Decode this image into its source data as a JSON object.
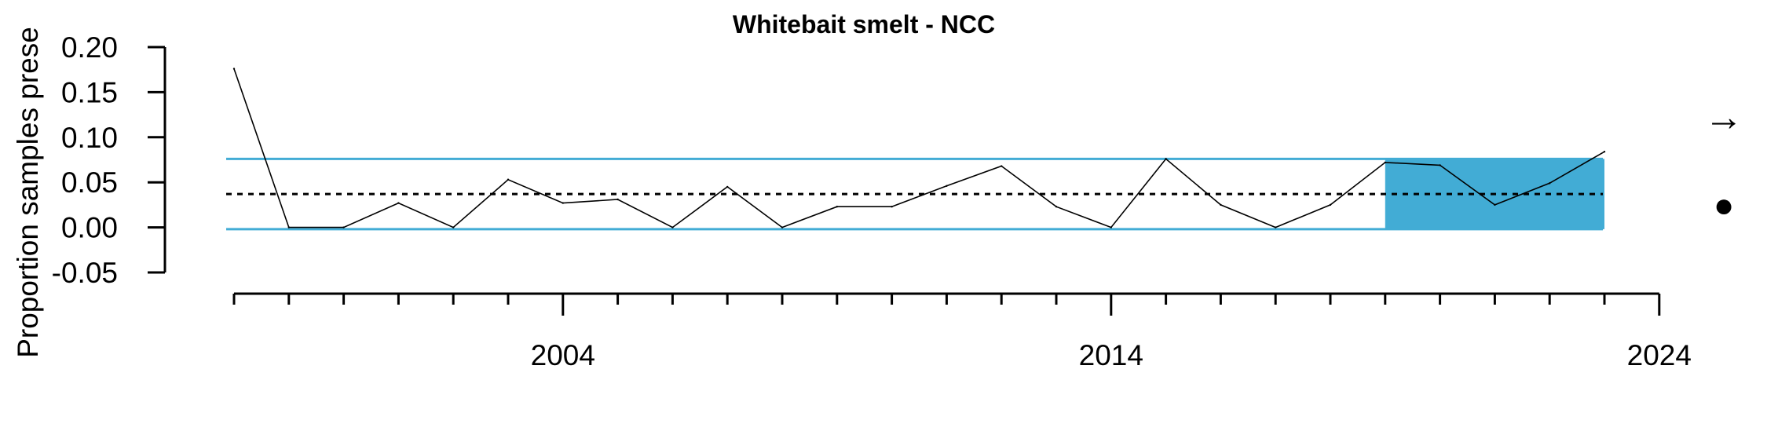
{
  "chart_data": {
    "type": "line",
    "title": "Whitebait smelt - NCC",
    "ylabel": "Proportion samples prese",
    "xlabel": "",
    "ylim": [
      -0.05,
      0.2
    ],
    "xlim": [
      1998,
      2024
    ],
    "y_ticks": [
      -0.05,
      0.0,
      0.05,
      0.1,
      0.15,
      0.2
    ],
    "y_tick_labels": [
      "-0.05",
      "0.00",
      "0.05",
      "0.10",
      "0.15",
      "0.20"
    ],
    "x_major_ticks": [
      2004,
      2014,
      2024
    ],
    "x_major_labels": [
      "2004",
      "2014",
      "2024"
    ],
    "x_minor_tick_range": [
      1998,
      2023
    ],
    "series": [
      {
        "x": [
          1998,
          1999,
          2000,
          2001,
          2002,
          2003,
          2004,
          2005,
          2006,
          2007,
          2008,
          2009,
          2010,
          2011,
          2012,
          2013,
          2014,
          2015,
          2016,
          2017,
          2018,
          2019,
          2020,
          2021,
          2022,
          2023
        ],
        "values": [
          0.176,
          0.0,
          0.0,
          0.027,
          0.0,
          0.053,
          0.027,
          0.031,
          0.0,
          0.045,
          0.0,
          0.023,
          0.023,
          0.046,
          0.068,
          0.023,
          0.0,
          0.076,
          0.025,
          0.0,
          0.025,
          0.072,
          0.069,
          0.025,
          0.049,
          0.084
        ]
      }
    ],
    "reference_lines": {
      "mean": 0.037,
      "upper": 0.076,
      "lower": -0.002
    },
    "highlight_region": {
      "x_start": 2019,
      "x_end": 2023
    },
    "colors": {
      "line": "#000000",
      "bounds": "#42acd5",
      "highlight": "#42acd5",
      "mean": "#000000"
    },
    "grid": false,
    "legend": "none",
    "right_symbols": {
      "trend": "→",
      "status": "●"
    }
  }
}
